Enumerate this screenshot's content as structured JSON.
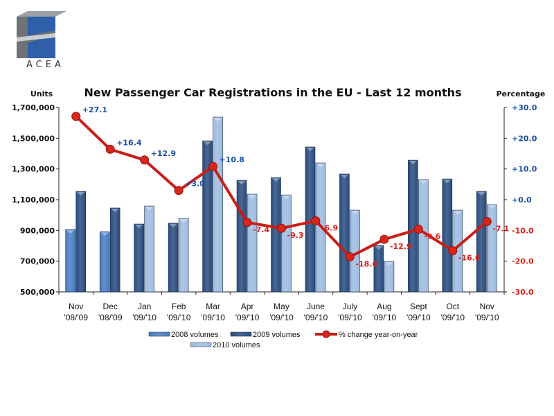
{
  "logo": {
    "text": "ACEA",
    "icon": "acea-cube-logo"
  },
  "chart_data": {
    "type": "bar",
    "title": "New Passenger Car Registrations in the EU - Last 12 months",
    "ylabel": "Units",
    "y2label": "Percentage",
    "xlabel": "",
    "ylim": [
      500000,
      1700000
    ],
    "y2lim": [
      -30,
      30
    ],
    "yticks": [
      "1,700,000",
      "1,500,000",
      "1,300,000",
      "1,100,000",
      "900,000",
      "700,000",
      "500,000"
    ],
    "yticks_values": [
      1700000,
      1500000,
      1300000,
      1100000,
      900000,
      700000,
      500000
    ],
    "y2ticks": [
      "+30.0",
      "+20.0",
      "+10.0",
      "+0.0",
      "-10.0",
      "-20.0",
      "-30.0"
    ],
    "y2ticks_values": [
      30,
      20,
      10,
      0,
      -10,
      -20,
      -30
    ],
    "categories": [
      [
        "Nov",
        "'08/'09"
      ],
      [
        "Dec",
        "'08/'09"
      ],
      [
        "Jan",
        "'09/'10"
      ],
      [
        "Feb",
        "'09/'10"
      ],
      [
        "Mar",
        "'09/'10"
      ],
      [
        "Apr",
        "'09/'10"
      ],
      [
        "May",
        "'09/'10"
      ],
      [
        "June",
        "'09/'10"
      ],
      [
        "July",
        "'09/'10"
      ],
      [
        "Aug",
        "'09/'10"
      ],
      [
        "Sept",
        "'09/'10"
      ],
      [
        "Oct",
        "'09/'10"
      ],
      [
        "Nov",
        "'09/'10"
      ]
    ],
    "series": [
      {
        "name": "2008 volumes",
        "type": "bar",
        "color": "#4a7cc0",
        "values": [
          906000,
          892000,
          null,
          null,
          null,
          null,
          null,
          null,
          null,
          null,
          null,
          null,
          null
        ]
      },
      {
        "name": "2009 volumes",
        "type": "bar",
        "color": "#284c7e",
        "values": [
          1154000,
          1046000,
          942000,
          947000,
          1483000,
          1226000,
          1244000,
          1443000,
          1267000,
          802000,
          1357000,
          1235000,
          1154000
        ]
      },
      {
        "name": "2010 volumes",
        "type": "bar",
        "color": "#9dbbe0",
        "values": [
          null,
          null,
          1059000,
          978000,
          1637000,
          1136000,
          1131000,
          1339000,
          1032000,
          698000,
          1231000,
          1032000,
          1068000
        ]
      },
      {
        "name": "% change year-on-year",
        "type": "line",
        "axis": "right",
        "color": "#c81e16",
        "values": [
          27.1,
          16.4,
          12.9,
          3.0,
          10.8,
          -7.4,
          -9.3,
          -6.9,
          -18.6,
          -12.9,
          -9.6,
          -16.6,
          -7.1
        ],
        "labels": [
          "+27.1",
          "+16.4",
          "+12.9",
          "+3.0",
          "+10.8",
          "-7.4",
          "-9.3",
          "-6.9",
          "-18.6",
          "-12.9",
          "-9.6",
          "-16.6",
          "-7.1"
        ]
      }
    ],
    "legend": [
      "2008 volumes",
      "2009 volumes",
      "% change year-on-year",
      "2010 volumes"
    ],
    "legend_position": "bottom",
    "grid": false
  }
}
